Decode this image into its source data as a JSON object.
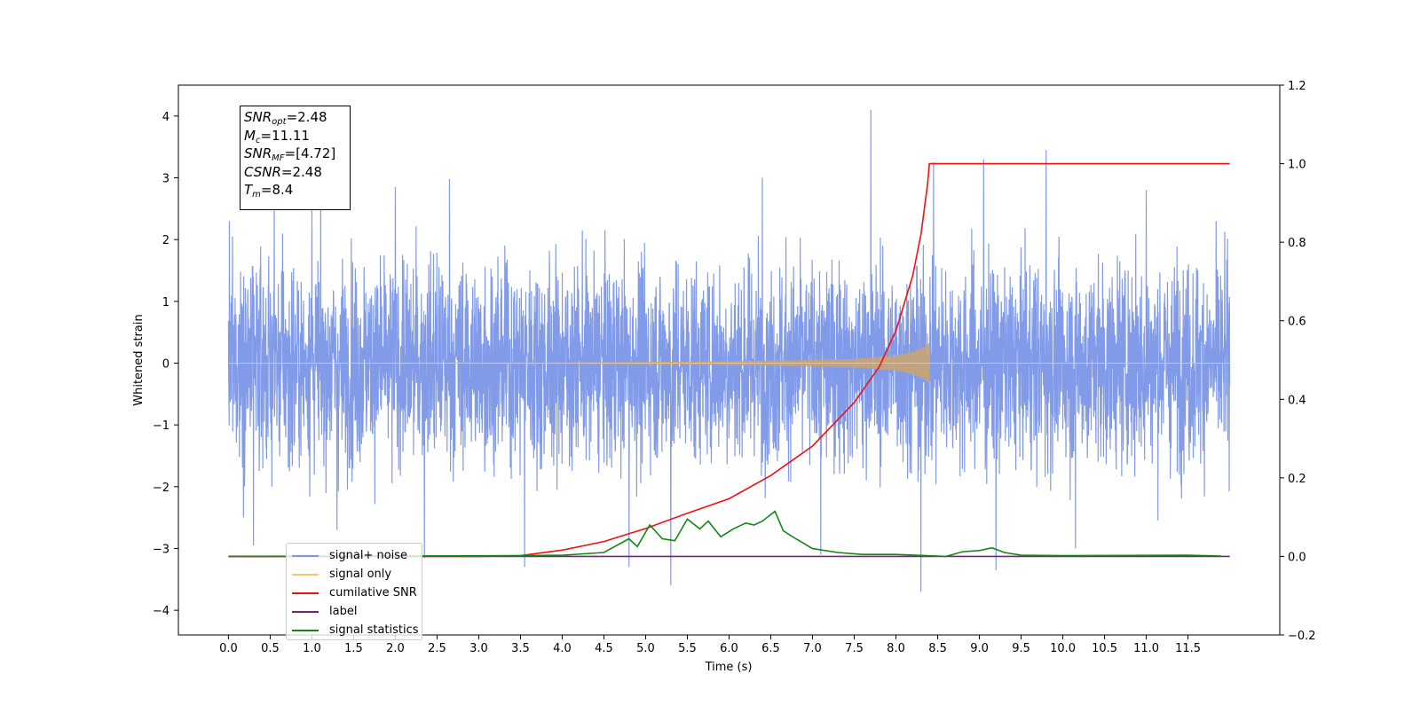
{
  "chart_data": {
    "type": "line",
    "xlabel": "Time (s)",
    "ylabel_left": "Whitened strain",
    "xlim": [
      -0.6,
      12.6
    ],
    "ylim_left": [
      -4.4,
      4.5
    ],
    "ylim_right": [
      -0.2,
      1.2
    ],
    "x_ticks": [
      0.0,
      0.5,
      1.0,
      1.5,
      2.0,
      2.5,
      3.0,
      3.5,
      4.0,
      4.5,
      5.0,
      5.5,
      6.0,
      6.5,
      7.0,
      7.5,
      8.0,
      8.5,
      9.0,
      9.5,
      10.0,
      10.5,
      11.0,
      11.5
    ],
    "x_tick_labels": [
      "0.0",
      "0.5",
      "1.0",
      "1.5",
      "2.0",
      "2.5",
      "3.0",
      "3.5",
      "4.0",
      "4.5",
      "5.0",
      "5.5",
      "6.0",
      "6.5",
      "7.0",
      "7.5",
      "8.0",
      "8.5",
      "9.0",
      "9.5",
      "10.0",
      "10.5",
      "11.0",
      "11.5"
    ],
    "y_ticks_left": [
      4,
      3,
      2,
      1,
      0,
      -1,
      -2,
      -3,
      -4
    ],
    "y_tick_labels_left": [
      "4",
      "3",
      "2",
      "1",
      "0",
      "−1",
      "−2",
      "−3",
      "−4"
    ],
    "y_ticks_right": [
      1.2,
      1.0,
      0.8,
      0.6,
      0.4,
      0.2,
      0.0,
      -0.2
    ],
    "y_tick_labels_right": [
      "1.2",
      "1.0",
      "0.8",
      "0.6",
      "0.4",
      "0.2",
      "0.0",
      "−0.2"
    ],
    "grid": false,
    "legend_position": "lower-left",
    "series": [
      {
        "name": "signal+ noise",
        "axis": "left",
        "color": "#7b96e8",
        "description_values": "noise band with typical range [-2.0, 2.0]",
        "t_range": [
          0.0,
          12.0
        ],
        "typical_low": -2.0,
        "typical_high": 2.0,
        "spikes": [
          [
            0.05,
            2.05
          ],
          [
            0.3,
            -2.95
          ],
          [
            0.55,
            2.98
          ],
          [
            1.0,
            2.55
          ],
          [
            1.3,
            -2.7
          ],
          [
            2.0,
            2.85
          ],
          [
            2.35,
            -3.15
          ],
          [
            2.65,
            2.98
          ],
          [
            3.55,
            -3.3
          ],
          [
            4.8,
            -3.3
          ],
          [
            5.3,
            -3.6
          ],
          [
            6.4,
            3.0
          ],
          [
            7.1,
            -3.1
          ],
          [
            7.7,
            4.1
          ],
          [
            8.3,
            -3.7
          ],
          [
            8.45,
            3.25
          ],
          [
            9.05,
            3.3
          ],
          [
            9.2,
            -3.35
          ],
          [
            9.8,
            3.45
          ],
          [
            10.15,
            -3.0
          ],
          [
            11.0,
            2.8
          ]
        ]
      },
      {
        "name": "signal only",
        "axis": "left",
        "color": "#f5c46b",
        "description_values": "chirp growing from 0 amplitude to about 0.3 at merger time 8.4 s, then 0",
        "envelope": [
          [
            0.0,
            0.005
          ],
          [
            4.0,
            0.01
          ],
          [
            6.0,
            0.03
          ],
          [
            7.0,
            0.05
          ],
          [
            7.5,
            0.07
          ],
          [
            8.0,
            0.12
          ],
          [
            8.2,
            0.18
          ],
          [
            8.35,
            0.27
          ],
          [
            8.4,
            0.33
          ],
          [
            8.41,
            0.0
          ],
          [
            12.0,
            0.0
          ]
        ]
      },
      {
        "name": "cumilative SNR",
        "axis": "right",
        "color": "#ee1111",
        "x": [
          0.0,
          3.0,
          3.5,
          4.0,
          4.5,
          5.0,
          5.5,
          6.0,
          6.5,
          7.0,
          7.5,
          7.8,
          8.0,
          8.2,
          8.3,
          8.38,
          8.4,
          12.0
        ],
        "values": [
          0.0,
          0.0,
          0.002,
          0.016,
          0.038,
          0.071,
          0.11,
          0.147,
          0.206,
          0.281,
          0.392,
          0.483,
          0.575,
          0.714,
          0.82,
          0.95,
          1.0,
          1.0
        ]
      },
      {
        "name": "label",
        "axis": "right",
        "color": "#7b1f7b",
        "x": [
          0.0,
          12.0
        ],
        "values": [
          0.0,
          0.0
        ]
      },
      {
        "name": "signal statistics",
        "axis": "right",
        "color": "#118811",
        "x": [
          0.0,
          3.5,
          4.0,
          4.5,
          4.8,
          4.9,
          5.05,
          5.2,
          5.35,
          5.5,
          5.65,
          5.75,
          5.9,
          6.05,
          6.2,
          6.3,
          6.4,
          6.55,
          6.65,
          6.8,
          7.0,
          7.3,
          7.6,
          8.0,
          8.6,
          8.8,
          9.0,
          9.15,
          9.3,
          9.5,
          10.0,
          11.5,
          11.9
        ],
        "values": [
          0.0,
          0.002,
          0.003,
          0.01,
          0.045,
          0.025,
          0.08,
          0.045,
          0.04,
          0.095,
          0.07,
          0.09,
          0.05,
          0.07,
          0.085,
          0.08,
          0.09,
          0.115,
          0.065,
          0.045,
          0.02,
          0.01,
          0.005,
          0.005,
          0.0,
          0.012,
          0.015,
          0.022,
          0.01,
          0.003,
          0.002,
          0.003,
          0.001
        ]
      }
    ],
    "annotation_box": {
      "lines": [
        {
          "base": "SNR",
          "sub": "opt",
          "value": "=2.48"
        },
        {
          "base": "M",
          "sub": "c",
          "value": "=11.11"
        },
        {
          "base": "SNR",
          "sub": "MF",
          "value": "=[4.72]"
        },
        {
          "base": "CSNR",
          "sub": "",
          "value": "=2.48"
        },
        {
          "base": "T",
          "sub": "m",
          "value": "=8.4"
        }
      ]
    }
  }
}
